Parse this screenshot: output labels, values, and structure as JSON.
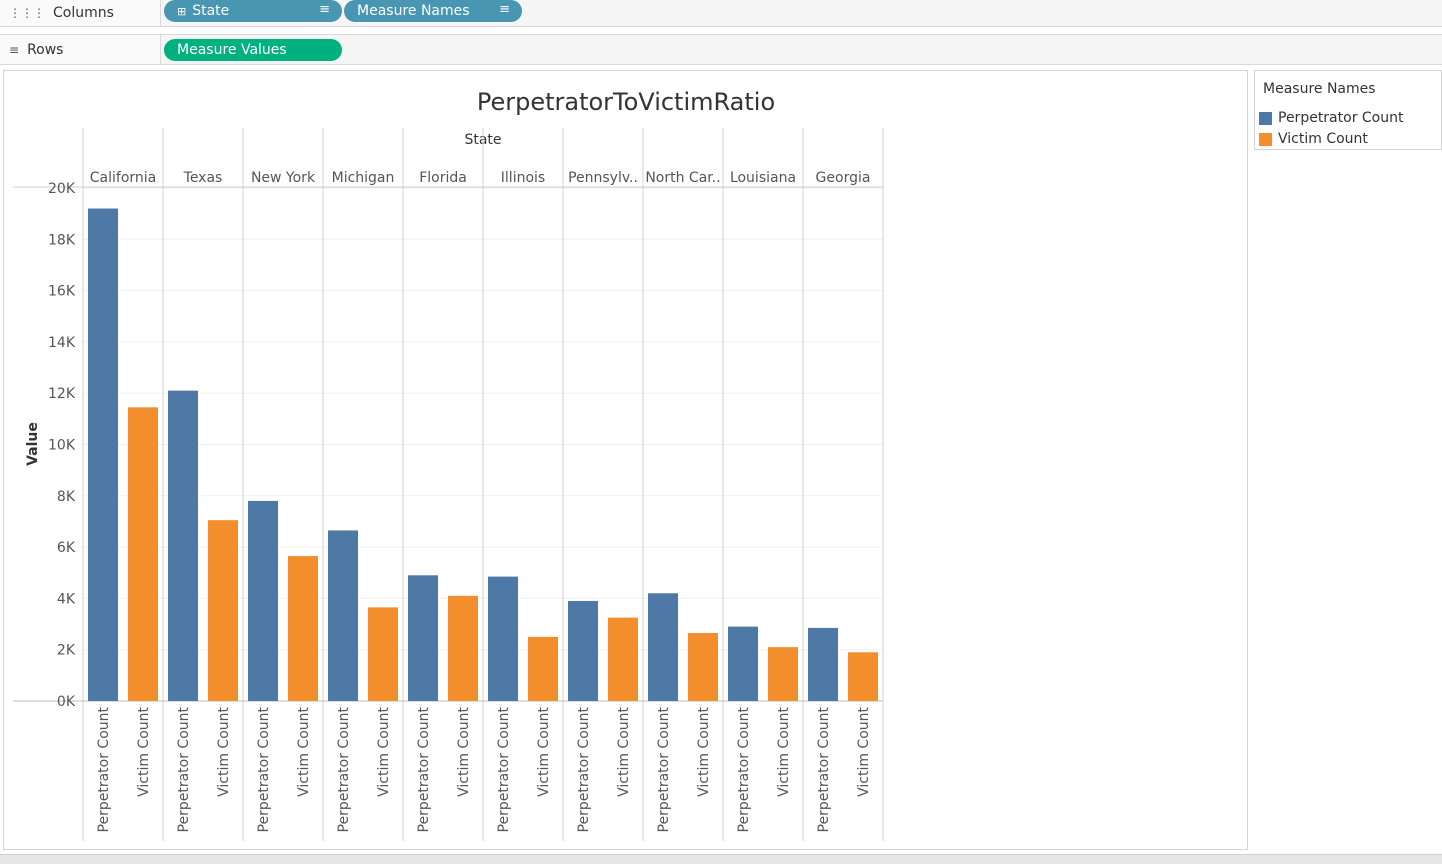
{
  "shelves": {
    "columns": {
      "label": "Columns",
      "pills": [
        "State",
        "Measure Names"
      ]
    },
    "rows": {
      "label": "Rows",
      "pills": [
        "Measure Values"
      ]
    }
  },
  "colors": {
    "perpetrator": "#4e79a7",
    "victim": "#f28e2b",
    "dimension_pill": "#4996b2",
    "measure_pill": "#00b180"
  },
  "legend": {
    "title": "Measure Names",
    "items": [
      {
        "label": "Perpetrator Count",
        "color": "#4e79a7"
      },
      {
        "label": "Victim Count",
        "color": "#f28e2b"
      }
    ]
  },
  "chart_data": {
    "type": "bar",
    "title": "PerpetratorToVictimRatio",
    "column_header": "State",
    "ylabel": "Value",
    "ylim": [
      0,
      20000
    ],
    "yticks": [
      "0K",
      "2K",
      "4K",
      "6K",
      "8K",
      "10K",
      "12K",
      "14K",
      "16K",
      "18K",
      "20K"
    ],
    "grid": true,
    "categories": [
      "California",
      "Texas",
      "New York",
      "Michigan",
      "Florida",
      "Illinois",
      "Pennsylv..",
      "North Car..",
      "Louisiana",
      "Georgia"
    ],
    "series": [
      {
        "name": "Perpetrator Count",
        "values": [
          19200,
          12100,
          7800,
          6650,
          4900,
          4850,
          3900,
          4200,
          2900,
          2850
        ]
      },
      {
        "name": "Victim Count",
        "values": [
          11450,
          7050,
          5650,
          3650,
          4100,
          2500,
          3250,
          2650,
          2100,
          1900
        ]
      }
    ]
  }
}
